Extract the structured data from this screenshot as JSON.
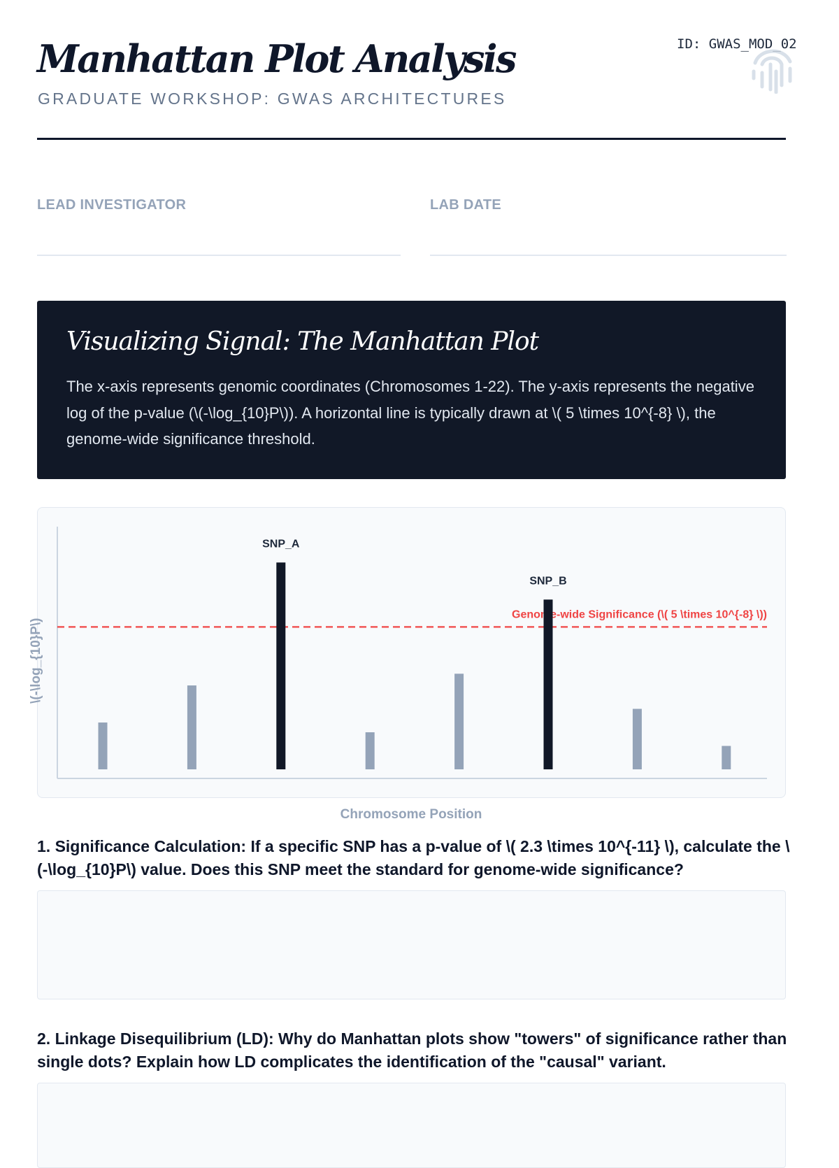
{
  "header": {
    "title": "Manhattan Plot Analysis",
    "subtitle": "GRADUATE WORKSHOP: GWAS ARCHITECTURES",
    "doc_id": "ID: GWAS_MOD_02",
    "watermark_icon": "fingerprint-icon"
  },
  "fields": [
    {
      "label": "LEAD INVESTIGATOR",
      "value": ""
    },
    {
      "label": "LAB DATE",
      "value": ""
    }
  ],
  "intro": {
    "heading": "Visualizing Signal: The Manhattan Plot",
    "body": "The x-axis represents genomic coordinates (Chromosomes 1-22). The y-axis represents the negative log of the p-value (\\(-\\log_{10}P\\)). A horizontal line is typically drawn at \\( 5 \\times 10^{-8} \\), the genome-wide significance threshold."
  },
  "chart_data": {
    "type": "bar",
    "xlabel": "Chromosome Position",
    "ylabel": "\\(-\\log_{10}P\\)",
    "ylim": [
      0,
      12
    ],
    "grid": false,
    "values": [
      2.4,
      4.3,
      10.6,
      1.9,
      4.9,
      8.7,
      3.1,
      1.2
    ],
    "labels": [
      "",
      "",
      "SNP_A",
      "",
      "",
      "SNP_B",
      "",
      ""
    ],
    "highlighted": [
      false,
      false,
      true,
      false,
      false,
      true,
      false,
      false
    ],
    "threshold": {
      "value": 7.3,
      "label": "Genome-wide Significance (\\( 5 \\times 10^{-8} \\))",
      "color": "#ef4444"
    },
    "colors": {
      "normal": "#94a3b8",
      "highlight": "#111827"
    }
  },
  "questions": [
    {
      "text": "1. Significance Calculation: If a specific SNP has a p-value of \\( 2.3 \\times 10^{-11} \\), calculate the \\(-\\log_{10}P\\) value. Does this SNP meet the standard for genome-wide significance?",
      "answer": ""
    },
    {
      "text": "2. Linkage Disequilibrium (LD): Why do Manhattan plots show \"towers\" of significance rather than single dots? Explain how LD complicates the identification of the \"causal\" variant.",
      "answer": ""
    }
  ]
}
